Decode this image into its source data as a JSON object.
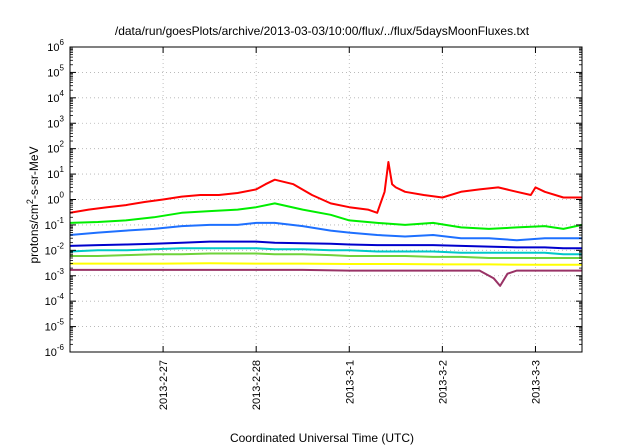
{
  "chart_data": {
    "type": "line",
    "title": "/data/run/goesPlots/archive/2013-03-03/10:00/flux/../flux/5daysMoonFluxes.txt",
    "xlabel": "Coordinated Universal Time (UTC)",
    "ylabel": {
      "prefix": "protons/cm",
      "sup": "2",
      "suffix": "-s-sr-MeV"
    },
    "yscale": "log",
    "ylim": [
      1e-06,
      1000000.0
    ],
    "xlim": [
      0,
      5.5
    ],
    "y_ticks": [
      {
        "value": 1e-06,
        "base": "10",
        "exp": "-6"
      },
      {
        "value": 1e-05,
        "base": "10",
        "exp": "-5"
      },
      {
        "value": 0.0001,
        "base": "10",
        "exp": "-4"
      },
      {
        "value": 0.001,
        "base": "10",
        "exp": "-3"
      },
      {
        "value": 0.01,
        "base": "10",
        "exp": "-2"
      },
      {
        "value": 0.1,
        "base": "10",
        "exp": "-1"
      },
      {
        "value": 1.0,
        "base": "10",
        "exp": "0"
      },
      {
        "value": 10.0,
        "base": "10",
        "exp": "1"
      },
      {
        "value": 100.0,
        "base": "10",
        "exp": "2"
      },
      {
        "value": 1000.0,
        "base": "10",
        "exp": "3"
      },
      {
        "value": 10000.0,
        "base": "10",
        "exp": "4"
      },
      {
        "value": 100000.0,
        "base": "10",
        "exp": "5"
      },
      {
        "value": 1000000.0,
        "base": "10",
        "exp": "6"
      }
    ],
    "x_ticks": [
      {
        "value": 1,
        "label": "2013-2-27"
      },
      {
        "value": 2,
        "label": "2013-2-28"
      },
      {
        "value": 3,
        "label": "2013-3-1"
      },
      {
        "value": 4,
        "label": "2013-3-2"
      },
      {
        "value": 5,
        "label": "2013-3-3"
      }
    ],
    "grid": true,
    "series": [
      {
        "color": "#ff0000",
        "x": [
          0,
          0.2,
          0.4,
          0.6,
          0.8,
          1.0,
          1.2,
          1.4,
          1.6,
          1.8,
          2.0,
          2.1,
          2.2,
          2.4,
          2.6,
          2.8,
          3.0,
          3.2,
          3.3,
          3.38,
          3.42,
          3.46,
          3.5,
          3.6,
          3.8,
          4.0,
          4.2,
          4.4,
          4.6,
          4.8,
          4.95,
          5.0,
          5.1,
          5.3,
          5.5
        ],
        "y": [
          0.3,
          0.4,
          0.5,
          0.6,
          0.8,
          1.0,
          1.3,
          1.5,
          1.5,
          1.8,
          2.5,
          4.0,
          6.0,
          4.0,
          1.5,
          0.7,
          0.5,
          0.4,
          0.3,
          2.0,
          30.0,
          4.0,
          3.0,
          2.0,
          1.5,
          1.2,
          2.0,
          2.5,
          3.0,
          2.0,
          1.5,
          3.0,
          2.0,
          1.2,
          1.2
        ]
      },
      {
        "color": "#00ee00",
        "x": [
          0,
          0.3,
          0.6,
          0.9,
          1.2,
          1.5,
          1.8,
          2.0,
          2.2,
          2.5,
          2.8,
          3.0,
          3.3,
          3.6,
          3.9,
          4.2,
          4.5,
          4.8,
          5.1,
          5.3,
          5.5
        ],
        "y": [
          0.12,
          0.13,
          0.15,
          0.2,
          0.3,
          0.35,
          0.4,
          0.5,
          0.7,
          0.4,
          0.25,
          0.15,
          0.12,
          0.1,
          0.12,
          0.08,
          0.07,
          0.08,
          0.09,
          0.07,
          0.1
        ]
      },
      {
        "color": "#1e70ff",
        "x": [
          0,
          0.3,
          0.6,
          0.9,
          1.2,
          1.5,
          1.8,
          2.0,
          2.2,
          2.5,
          2.8,
          3.0,
          3.3,
          3.6,
          3.9,
          4.2,
          4.5,
          4.8,
          5.1,
          5.3,
          5.5
        ],
        "y": [
          0.04,
          0.05,
          0.06,
          0.07,
          0.09,
          0.1,
          0.1,
          0.12,
          0.12,
          0.09,
          0.06,
          0.05,
          0.04,
          0.035,
          0.04,
          0.03,
          0.03,
          0.025,
          0.03,
          0.03,
          0.03
        ]
      },
      {
        "color": "#0000cc",
        "x": [
          0,
          0.3,
          0.6,
          0.9,
          1.2,
          1.5,
          1.8,
          2.0,
          2.2,
          2.5,
          2.8,
          3.0,
          3.3,
          3.6,
          3.9,
          4.2,
          4.5,
          4.8,
          5.1,
          5.3,
          5.5
        ],
        "y": [
          0.015,
          0.016,
          0.017,
          0.018,
          0.02,
          0.022,
          0.022,
          0.022,
          0.02,
          0.019,
          0.018,
          0.017,
          0.016,
          0.016,
          0.016,
          0.015,
          0.014,
          0.013,
          0.013,
          0.012,
          0.012
        ]
      },
      {
        "color": "#00c8c8",
        "x": [
          0,
          0.3,
          0.6,
          0.9,
          1.2,
          1.5,
          1.8,
          2.0,
          2.2,
          2.5,
          2.8,
          3.0,
          3.3,
          3.6,
          3.9,
          4.2,
          4.5,
          4.8,
          5.1,
          5.3,
          5.5
        ],
        "y": [
          0.009,
          0.01,
          0.01,
          0.011,
          0.012,
          0.012,
          0.012,
          0.012,
          0.011,
          0.011,
          0.01,
          0.01,
          0.009,
          0.009,
          0.009,
          0.008,
          0.008,
          0.008,
          0.008,
          0.007,
          0.007
        ]
      },
      {
        "color": "#6fd33a",
        "x": [
          0,
          0.3,
          0.6,
          0.9,
          1.2,
          1.5,
          1.8,
          2.0,
          2.2,
          2.5,
          2.8,
          3.0,
          3.3,
          3.6,
          3.9,
          4.2,
          4.5,
          4.8,
          5.1,
          5.3,
          5.5
        ],
        "y": [
          0.006,
          0.006,
          0.0065,
          0.007,
          0.007,
          0.0075,
          0.0075,
          0.0075,
          0.007,
          0.007,
          0.0065,
          0.006,
          0.006,
          0.006,
          0.0055,
          0.0055,
          0.005,
          0.005,
          0.005,
          0.005,
          0.005
        ]
      },
      {
        "color": "#ffff00",
        "x": [
          0,
          0.5,
          1.0,
          1.5,
          2.0,
          2.5,
          3.0,
          3.5,
          4.0,
          4.5,
          5.0,
          5.5
        ],
        "y": [
          0.003,
          0.003,
          0.003,
          0.0031,
          0.003,
          0.003,
          0.0029,
          0.0029,
          0.0028,
          0.0028,
          0.0027,
          0.0027
        ]
      },
      {
        "color": "#993366",
        "x": [
          0,
          0.5,
          1.0,
          1.5,
          2.0,
          2.5,
          3.0,
          3.5,
          4.0,
          4.4,
          4.55,
          4.62,
          4.7,
          4.8,
          5.0,
          5.5
        ],
        "y": [
          0.0017,
          0.0017,
          0.0017,
          0.0017,
          0.0017,
          0.0017,
          0.0016,
          0.0016,
          0.0016,
          0.0016,
          0.0008,
          0.0004,
          0.0012,
          0.0016,
          0.0016,
          0.0016
        ]
      }
    ]
  }
}
